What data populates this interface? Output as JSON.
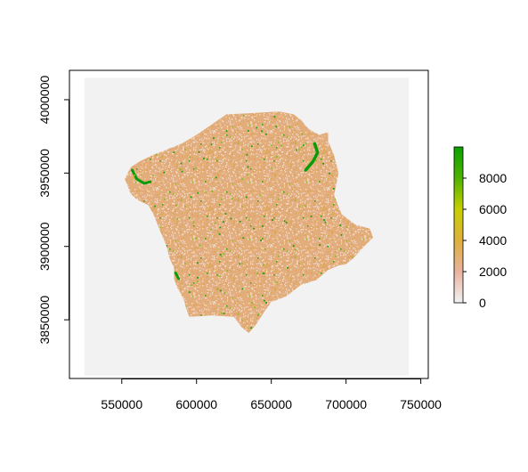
{
  "chart_data": {
    "type": "heatmap",
    "title": "",
    "xlabel": "",
    "ylabel": "",
    "xlim": [
      515000,
      755000
    ],
    "ylim": [
      3810000,
      4020000
    ],
    "extent": {
      "x": [
        525000,
        742000
      ],
      "y": [
        3812000,
        4015000
      ]
    },
    "x_ticks": [
      {
        "value": 550000,
        "label": "550000"
      },
      {
        "value": 600000,
        "label": "600000"
      },
      {
        "value": 650000,
        "label": "650000"
      },
      {
        "value": 700000,
        "label": "700000"
      },
      {
        "value": 750000,
        "label": "750000"
      }
    ],
    "y_ticks": [
      {
        "value": 3850000,
        "label": "3850000"
      },
      {
        "value": 3900000,
        "label": "3900000"
      },
      {
        "value": 3950000,
        "label": "3950000"
      },
      {
        "value": 4000000,
        "label": "4000000"
      }
    ],
    "region_outline": [
      [
        552000,
        3946000
      ],
      [
        556000,
        3954000
      ],
      [
        562000,
        3958000
      ],
      [
        570000,
        3962000
      ],
      [
        580000,
        3966000
      ],
      [
        590000,
        3970000
      ],
      [
        600000,
        3976000
      ],
      [
        610000,
        3983000
      ],
      [
        620000,
        3990000
      ],
      [
        640000,
        3991000
      ],
      [
        655000,
        3992000
      ],
      [
        665000,
        3990000
      ],
      [
        670000,
        3986000
      ],
      [
        675000,
        3980000
      ],
      [
        682000,
        3976000
      ],
      [
        688000,
        3978000
      ],
      [
        688000,
        3972000
      ],
      [
        692000,
        3962000
      ],
      [
        695000,
        3950000
      ],
      [
        692000,
        3935000
      ],
      [
        697000,
        3922000
      ],
      [
        706000,
        3915000
      ],
      [
        716000,
        3912000
      ],
      [
        718000,
        3906000
      ],
      [
        712000,
        3900000
      ],
      [
        705000,
        3892000
      ],
      [
        700000,
        3888000
      ],
      [
        695000,
        3887000
      ],
      [
        688000,
        3884000
      ],
      [
        680000,
        3877000
      ],
      [
        670000,
        3874000
      ],
      [
        660000,
        3866000
      ],
      [
        650000,
        3862000
      ],
      [
        645000,
        3855000
      ],
      [
        640000,
        3847000
      ],
      [
        635000,
        3841000
      ],
      [
        630000,
        3845000
      ],
      [
        625000,
        3852000
      ],
      [
        610000,
        3853000
      ],
      [
        595000,
        3852000
      ],
      [
        593000,
        3858000
      ],
      [
        592000,
        3862000
      ],
      [
        590000,
        3867000
      ],
      [
        587000,
        3872000
      ],
      [
        585000,
        3878000
      ],
      [
        585000,
        3885000
      ],
      [
        582000,
        3892000
      ],
      [
        580000,
        3900000
      ],
      [
        578000,
        3905000
      ],
      [
        575000,
        3912000
      ],
      [
        572000,
        3920000
      ],
      [
        568000,
        3928000
      ],
      [
        560000,
        3932000
      ],
      [
        556000,
        3936000
      ],
      [
        552000,
        3946000
      ]
    ],
    "colorbar": {
      "range": [
        0,
        10000
      ],
      "stops": [
        {
          "value": 0,
          "color": "#f2f2f2"
        },
        {
          "value": 2000,
          "color": "#e9b29f"
        },
        {
          "value": 4000,
          "color": "#deb03c"
        },
        {
          "value": 6000,
          "color": "#c8cf00"
        },
        {
          "value": 8000,
          "color": "#4fb300"
        },
        {
          "value": 10000,
          "color": "#0aa000"
        }
      ],
      "ticks": [
        {
          "value": 0,
          "label": "0"
        },
        {
          "value": 2000,
          "label": "2000"
        },
        {
          "value": 4000,
          "label": "4000"
        },
        {
          "value": 6000,
          "label": "6000"
        },
        {
          "value": 8000,
          "label": "8000"
        }
      ]
    },
    "grid": false,
    "legend": "right",
    "colors": {
      "background_na": "#f2f2f2",
      "dominant": "#e2ad7a",
      "low": "#f5e6e6",
      "high": "#0a9b0a"
    }
  }
}
